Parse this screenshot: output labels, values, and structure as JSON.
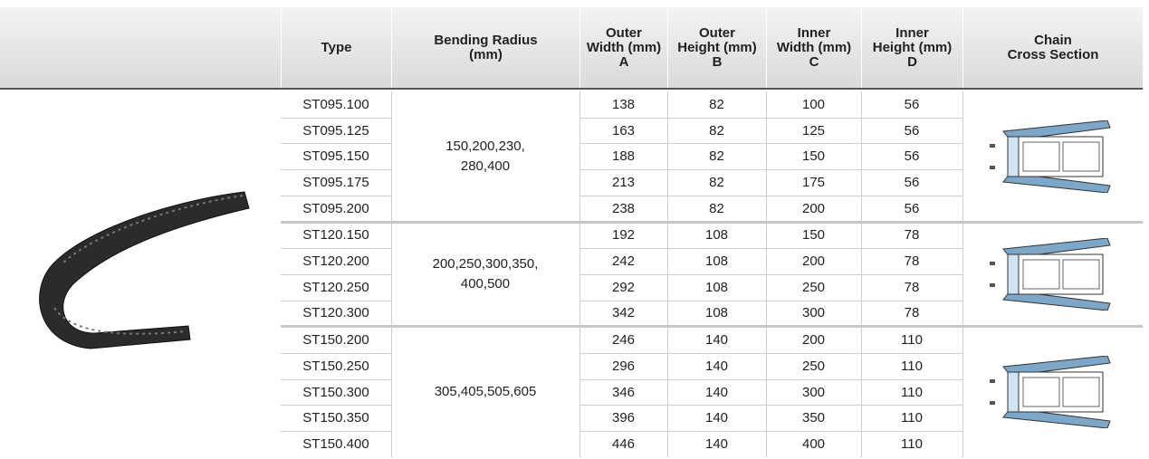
{
  "table": {
    "header": [
      [
        "Type"
      ],
      [
        "Bending Radius",
        "(mm)"
      ],
      [
        "Outer",
        "Width (mm)",
        "A"
      ],
      [
        "Outer",
        "Height (mm)",
        "B"
      ],
      [
        "Inner",
        "Width (mm)",
        "C"
      ],
      [
        "Inner",
        "Height (mm)",
        "D"
      ],
      [
        "Chain",
        "Cross Section"
      ]
    ],
    "groups": [
      {
        "bending_radius": [
          "150,200,230,",
          "280,400"
        ],
        "rows": [
          [
            "ST095.100",
            138,
            82,
            100,
            56
          ],
          [
            "ST095.125",
            163,
            82,
            125,
            56
          ],
          [
            "ST095.150",
            188,
            82,
            150,
            56
          ],
          [
            "ST095.175",
            213,
            82,
            175,
            56
          ],
          [
            "ST095.200",
            238,
            82,
            200,
            56
          ]
        ]
      },
      {
        "bending_radius": [
          "200,250,300,350,",
          "400,500"
        ],
        "rows": [
          [
            "ST120.150",
            192,
            108,
            150,
            78
          ],
          [
            "ST120.200",
            242,
            108,
            200,
            78
          ],
          [
            "ST120.250",
            292,
            108,
            250,
            78
          ],
          [
            "ST120.300",
            342,
            108,
            300,
            78
          ]
        ]
      },
      {
        "bending_radius": [
          "305,405,505,605"
        ],
        "rows": [
          [
            "ST150.200",
            246,
            140,
            200,
            110
          ],
          [
            "ST150.250",
            296,
            140,
            250,
            110
          ],
          [
            "ST150.300",
            346,
            140,
            300,
            110
          ],
          [
            "ST150.350",
            396,
            140,
            350,
            110
          ],
          [
            "ST150.400",
            446,
            140,
            400,
            110
          ]
        ]
      }
    ]
  }
}
